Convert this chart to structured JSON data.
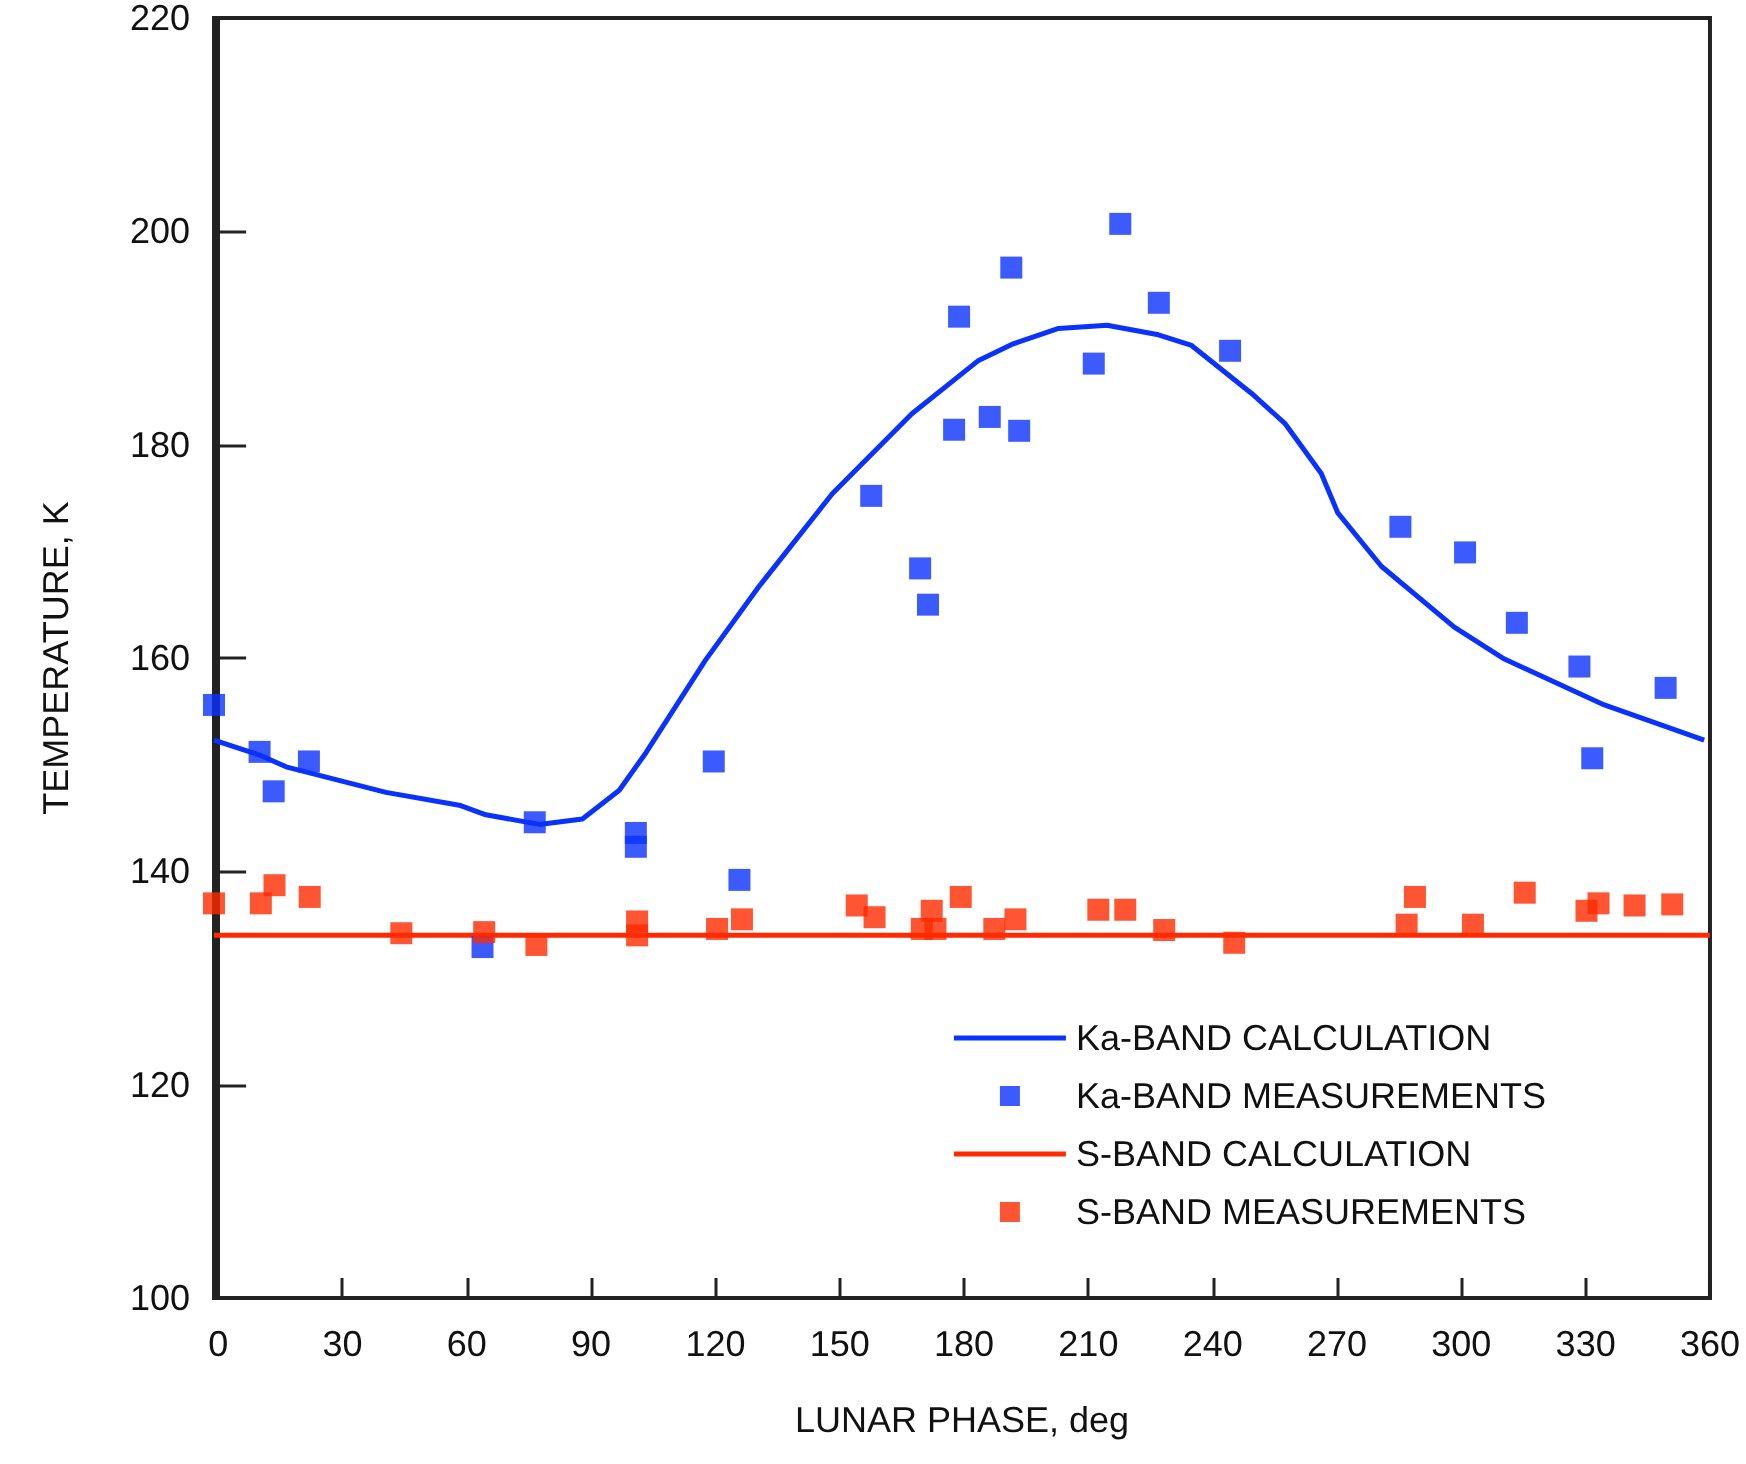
{
  "chart_data": {
    "type": "scatter",
    "xlabel": "LUNAR PHASE, deg",
    "ylabel": "TEMPERATURE, K",
    "xlim": [
      -1,
      360
    ],
    "xticks": [
      0,
      30,
      60,
      90,
      120,
      150,
      180,
      210,
      240,
      270,
      300,
      330,
      360
    ],
    "ylim": [
      100,
      220
    ],
    "yticks": [
      100,
      120,
      140,
      160,
      180,
      200,
      220
    ],
    "grid": false,
    "legend": "bottom right",
    "series": [
      {
        "name": "Ka-BAND CALCULATION",
        "type": "line",
        "marker": "none",
        "line_style": "solid",
        "color": "#0a32ff",
        "x": [
          -1,
          10,
          16.4,
          40.5,
          58.2,
          64.6,
          77.5,
          87.9,
          96.8,
          103.2,
          117.6,
          130.5,
          148.2,
          167.4,
          183.5,
          191.5,
          202.8,
          214.5,
          226.9,
          234.9,
          249.4,
          257.4,
          266.2,
          270.2,
          280.7,
          298.3,
          310.4,
          334.5,
          358.6
        ],
        "values": [
          152.3,
          150.9,
          149.8,
          147.4,
          146.2,
          145.3,
          144.4,
          144.9,
          147.6,
          151.1,
          159.8,
          166.7,
          175.4,
          182.9,
          187.9,
          189.4,
          190.9,
          191.2,
          190.3,
          189.3,
          184.8,
          182,
          177.3,
          173.6,
          168.6,
          162.9,
          159.9,
          155.6,
          152.3
        ]
      },
      {
        "name": "Ka-BAND MEASUREMENTS",
        "marker": "square",
        "color": "#0a32ff",
        "x": [
          -1,
          10,
          13.4,
          21.9,
          63.8,
          76.4,
          100.8,
          100.8,
          119.6,
          125.8,
          157.6,
          169.4,
          171.3,
          177.6,
          178.8,
          186.2,
          191.4,
          193.3,
          211.3,
          217.7,
          227,
          244.2,
          285.3,
          300.9,
          313.4,
          328.5,
          331.6,
          349.3
        ],
        "values": [
          155.6,
          151.2,
          147.5,
          150.3,
          132.9,
          144.6,
          143.6,
          142.3,
          150.3,
          139.2,
          175.2,
          168.4,
          165,
          181.4,
          192,
          182.6,
          196.6,
          181.3,
          187.6,
          200.7,
          193.3,
          188.8,
          172.3,
          169.9,
          163.3,
          159.2,
          150.6,
          157.2
        ]
      },
      {
        "name": "S-BAND CALCULATION",
        "type": "line",
        "marker": "none",
        "line_style": "solid",
        "color": "#ff2a00",
        "x": [
          -1,
          360
        ],
        "values": [
          134,
          134
        ]
      },
      {
        "name": "S-BAND MEASUREMENTS",
        "marker": "square",
        "color": "#ff2a00",
        "x": [
          -1,
          10.3,
          13.6,
          22.1,
          44.2,
          64.2,
          76.8,
          101.1,
          101.1,
          120.4,
          126.4,
          154.1,
          158.4,
          169.8,
          172.2,
          173.1,
          179.2,
          187.3,
          192.4,
          212.4,
          218.9,
          228.3,
          245.2,
          286.8,
          288.8,
          302.8,
          315.3,
          330.2,
          333.1,
          341.8,
          350.9
        ],
        "values": [
          137,
          137,
          138.7,
          137.6,
          134.2,
          134.3,
          133.1,
          135.3,
          134,
          134.6,
          135.5,
          136.8,
          135.7,
          134.6,
          136.3,
          134.6,
          137.6,
          134.6,
          135.5,
          136.4,
          136.4,
          134.5,
          133.3,
          135,
          137.6,
          135,
          138,
          136.3,
          137,
          136.8,
          136.9
        ]
      }
    ]
  }
}
